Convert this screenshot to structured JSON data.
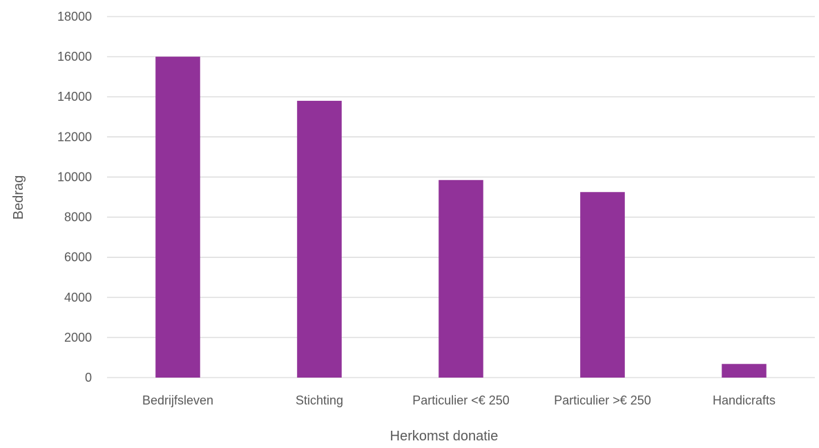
{
  "chart_data": {
    "type": "bar",
    "title": "",
    "xlabel": "Herkomst donatie",
    "ylabel": "Bedrag",
    "categories": [
      "Bedrijfsleven",
      "Stichting",
      "Particulier <€ 250",
      "Particulier >€ 250",
      "Handicrafts"
    ],
    "values": [
      16000,
      13800,
      9850,
      9250,
      680
    ],
    "ylim": [
      0,
      18000
    ],
    "yticks": [
      "0",
      "2000",
      "4000",
      "6000",
      "8000",
      "10000",
      "12000",
      "14000",
      "16000",
      "18000"
    ],
    "grid": true,
    "legend": "none",
    "colors": {
      "bar": "#913299",
      "grid": "#d9d9d9",
      "text": "#595959"
    }
  }
}
